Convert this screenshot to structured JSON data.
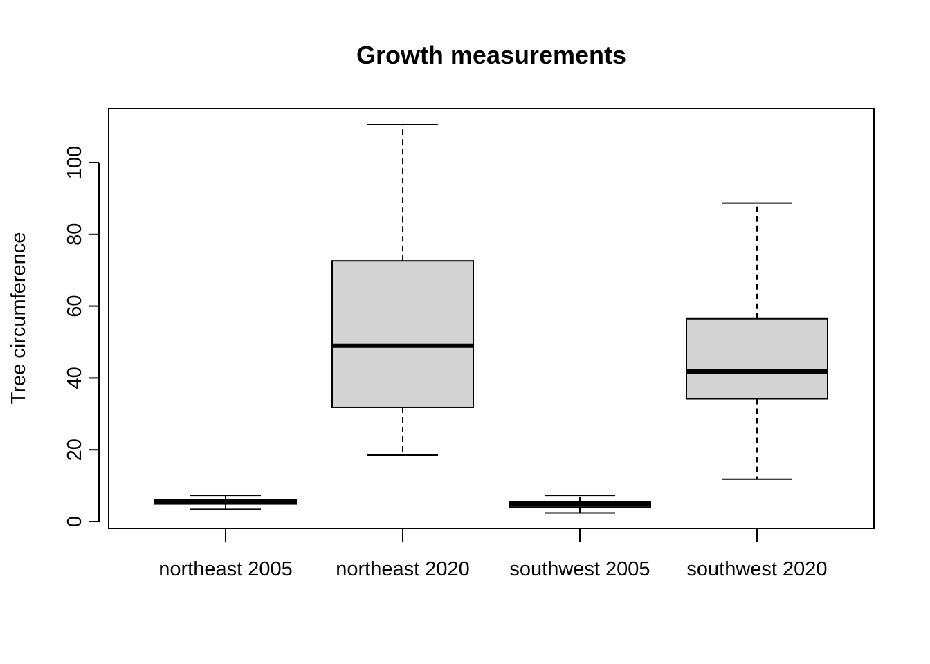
{
  "chart_data": {
    "type": "boxplot",
    "title": "Growth measurements",
    "xlabel": "",
    "ylabel": "Tree circumference",
    "ylim": [
      -2,
      115
    ],
    "yticks": [
      0,
      20,
      40,
      60,
      80,
      100
    ],
    "ytick_labels": [
      "0",
      "20",
      "40",
      "60",
      "80",
      "100"
    ],
    "categories": [
      "northeast 2005",
      "northeast 2020",
      "southwest 2005",
      "southwest 2020"
    ],
    "boxes": [
      {
        "whisker_low": 3.4,
        "q1": 4.9,
        "median": 5.4,
        "q3": 6.0,
        "whisker_high": 7.3
      },
      {
        "whisker_low": 18.5,
        "q1": 31.8,
        "median": 49.0,
        "q3": 72.6,
        "whisker_high": 110.6
      },
      {
        "whisker_low": 2.4,
        "q1": 4.0,
        "median": 4.8,
        "q3": 5.4,
        "whisker_high": 7.3
      },
      {
        "whisker_low": 11.8,
        "q1": 34.2,
        "median": 41.8,
        "q3": 56.5,
        "whisker_high": 88.7
      }
    ],
    "box_fill": "#d3d3d3",
    "line_color": "#000000",
    "grid": false,
    "legend": "none"
  }
}
